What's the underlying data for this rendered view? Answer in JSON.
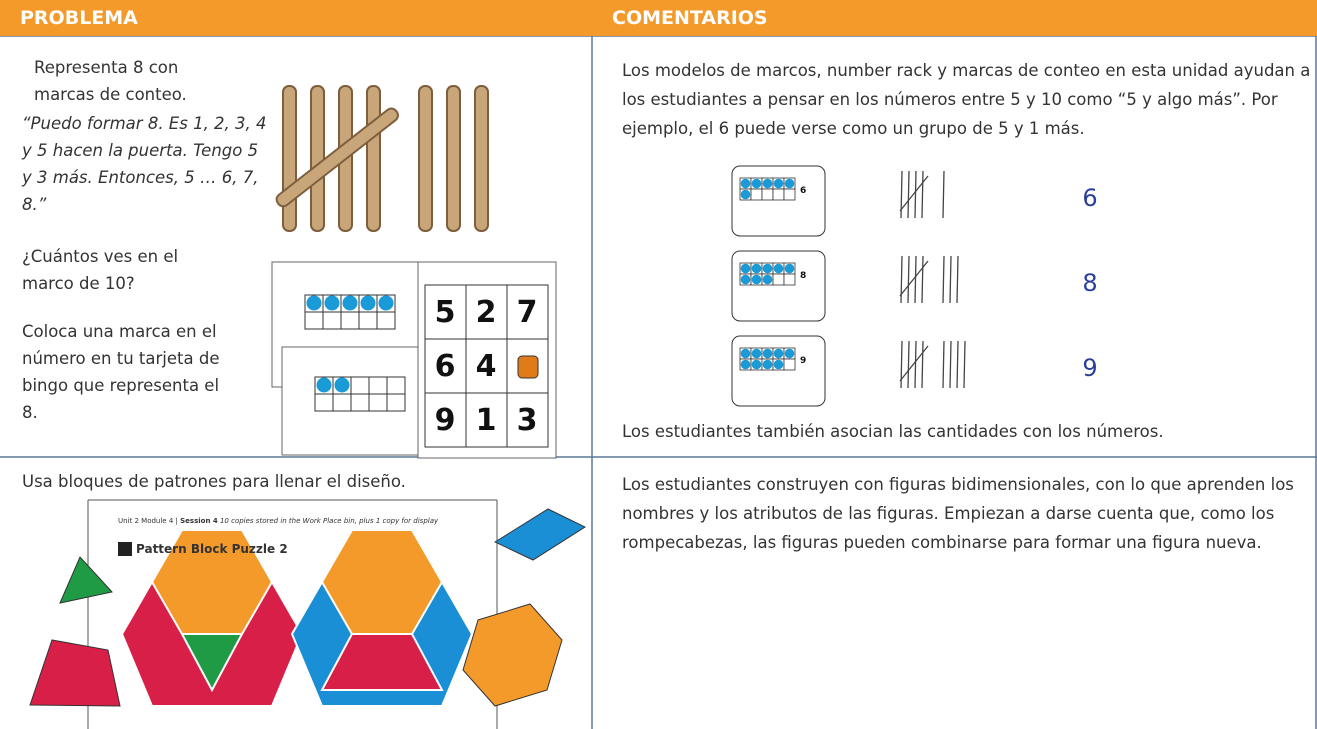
{
  "header": {
    "left": "PROBLEMA",
    "right": "COMENTARIOS"
  },
  "rows": [
    {
      "problem": {
        "prompt": "Representa 8 con marcas de conteo.",
        "quote": "“Puedo formar 8. Es 1, 2, 3, 4 y 5 hacen la puerta. Tengo 5 y 3 más. Entonces, 5 … 6, 7, 8.”",
        "question": "¿Cuántos ves en el marco de 10?",
        "instruction": "Coloca una marca en el número en tu tarjeta de bingo que representa el 8.",
        "bingo": [
          5,
          2,
          7,
          6,
          4,
          9,
          1,
          3
        ]
      },
      "comment": {
        "intro": "Los modelos de marcos, number rack y marcas de conteo en esta unidad ayudan a los estudiantes a pensar en los números entre 5 y 10 como “5 y algo más”. Por ejemplo, el 6 puede verse como un grupo de 5 y 1 más.",
        "examples": [
          {
            "card": 6,
            "numeral": 6
          },
          {
            "card": 8,
            "numeral": 8
          },
          {
            "card": 9,
            "numeral": 9
          }
        ],
        "closing": "Los estudiantes también asocian las cantidades con los números."
      }
    },
    {
      "problem": {
        "prompt": "Usa bloques de patrones para llenar el diseño.",
        "sheet": {
          "unit": "Unit 2  Module 4",
          "session": "Session 4",
          "note": "10 copies stored in the Work Place bin, plus 1 copy for display",
          "title": "Pattern Block Puzzle 2"
        }
      },
      "comment": {
        "text": "Los estudiantes construyen con figuras bidimensionales, con lo que aprenden los nombres y los atributos de las figuras. Empiezan a darse cuenta que, como los rompecabezas, las figuras pueden combinarse para formar una figura nueva."
      }
    }
  ]
}
